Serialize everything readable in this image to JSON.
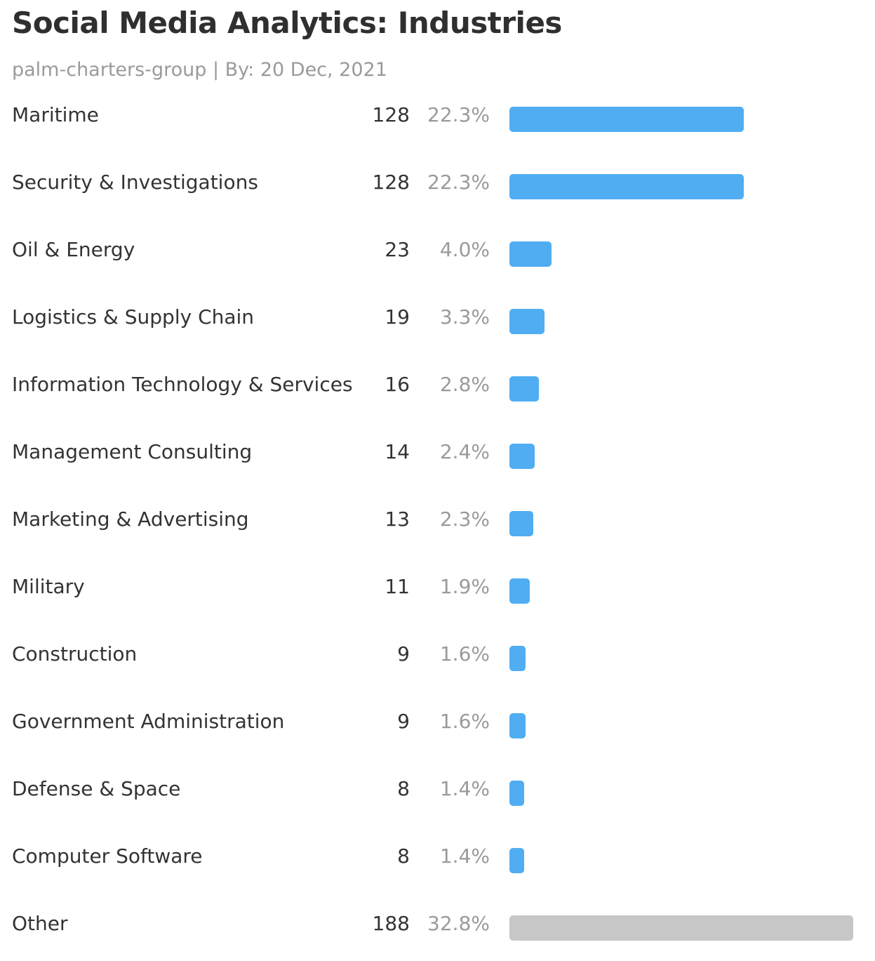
{
  "title": "Social Media Analytics: Industries",
  "subtitle": "palm-charters-group | By: 20 Dec, 2021",
  "colors": {
    "bar": "#50adf2",
    "other": "#c7c7c7"
  },
  "chart_data": {
    "type": "bar",
    "orientation": "horizontal",
    "title": "Social Media Analytics: Industries",
    "xlim": [
      0,
      188
    ],
    "categories": [
      "Maritime",
      "Security & Investigations",
      "Oil & Energy",
      "Logistics & Supply Chain",
      "Information Technology & Services",
      "Management Consulting",
      "Marketing & Advertising",
      "Military",
      "Construction",
      "Government Administration",
      "Defense & Space",
      "Computer Software",
      "Other"
    ],
    "values": [
      128,
      128,
      23,
      19,
      16,
      14,
      13,
      11,
      9,
      9,
      8,
      8,
      188
    ],
    "percent_labels": [
      "22.3%",
      "22.3%",
      "4.0%",
      "3.3%",
      "2.8%",
      "2.4%",
      "2.3%",
      "1.9%",
      "1.6%",
      "1.6%",
      "1.4%",
      "1.4%",
      "32.8%"
    ],
    "gray_categories": [
      "Other"
    ]
  }
}
